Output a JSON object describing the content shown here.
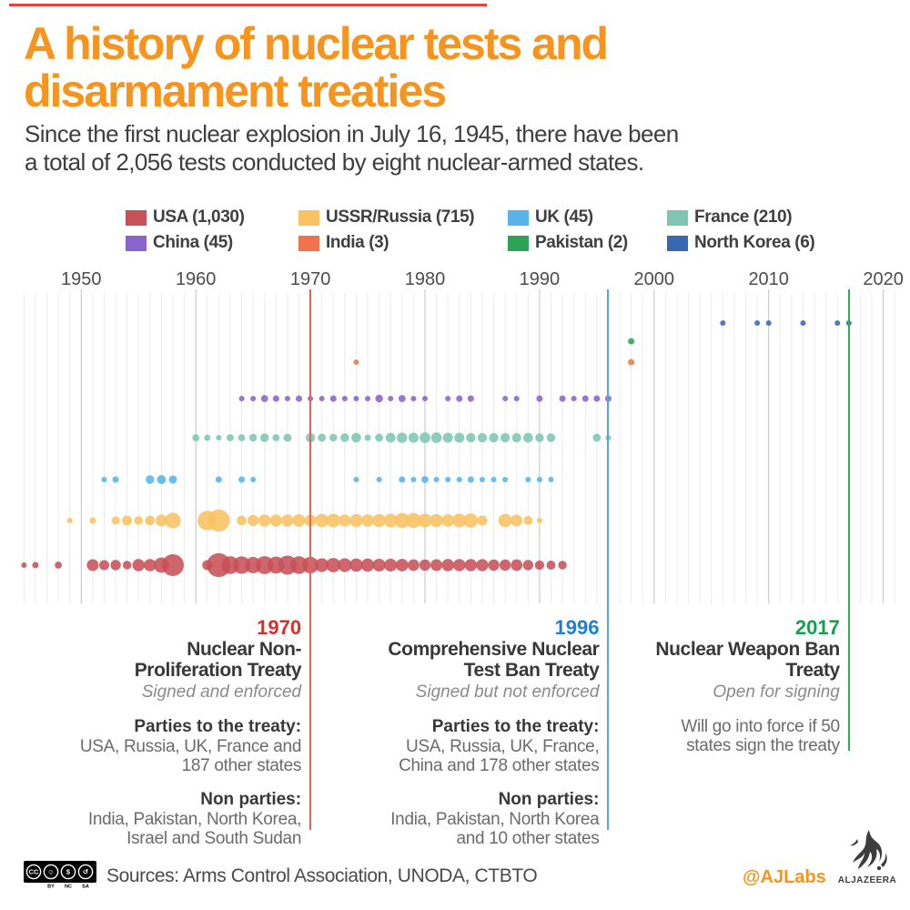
{
  "header": {
    "title_line1": "A history of nuclear tests and",
    "title_line2": "disarmament treaties",
    "subtitle_line1": "Since the first nuclear explosion in July 16, 1945, there have been",
    "subtitle_line2": "a total of 2,056 tests conducted by eight nuclear-armed states."
  },
  "legend": {
    "rows": [
      [
        {
          "label": "USA (1,030)",
          "color": "#c7515a"
        },
        {
          "label": "USSR/Russia (715)",
          "color": "#f9c262"
        },
        {
          "label": "UK (45)",
          "color": "#57b4e8"
        },
        {
          "label": "France (210)",
          "color": "#7cc6b3"
        }
      ],
      [
        {
          "label": "China (45)",
          "color": "#8a63cd"
        },
        {
          "label": "India (3)",
          "color": "#ef744e"
        },
        {
          "label": "Pakistan (2)",
          "color": "#2ea357"
        },
        {
          "label": "North Korea (6)",
          "color": "#3a68b0"
        }
      ]
    ]
  },
  "chart_data": {
    "type": "bubble-timeline",
    "title": "Nuclear tests per year by country, bubble size = number of tests",
    "x_axis": {
      "min": 1945,
      "max": 2021,
      "ticks": [
        1950,
        1960,
        1970,
        1980,
        1990,
        2000,
        2010,
        2020
      ]
    },
    "grid": true,
    "series": [
      {
        "name": "USA",
        "total": 1030,
        "color": "#c7515a",
        "tests": {
          "1945": 1,
          "1946": 2,
          "1948": 3,
          "1951": 16,
          "1952": 10,
          "1953": 11,
          "1954": 6,
          "1955": 18,
          "1956": 18,
          "1957": 32,
          "1958": 77,
          "1961": 10,
          "1962": 96,
          "1963": 47,
          "1964": 45,
          "1965": 38,
          "1966": 48,
          "1967": 42,
          "1968": 56,
          "1969": 46,
          "1970": 39,
          "1971": 24,
          "1972": 27,
          "1973": 24,
          "1974": 22,
          "1975": 22,
          "1976": 20,
          "1977": 20,
          "1978": 19,
          "1979": 15,
          "1980": 14,
          "1981": 16,
          "1982": 18,
          "1983": 18,
          "1984": 18,
          "1985": 17,
          "1986": 14,
          "1987": 14,
          "1988": 15,
          "1989": 11,
          "1990": 8,
          "1991": 7,
          "1992": 6
        }
      },
      {
        "name": "USSR/Russia",
        "total": 715,
        "color": "#f9c262",
        "tests": {
          "1949": 1,
          "1951": 2,
          "1953": 5,
          "1954": 10,
          "1955": 6,
          "1956": 9,
          "1957": 16,
          "1958": 34,
          "1961": 59,
          "1962": 79,
          "1964": 9,
          "1965": 14,
          "1966": 18,
          "1967": 17,
          "1968": 17,
          "1969": 19,
          "1970": 16,
          "1971": 23,
          "1972": 24,
          "1973": 17,
          "1974": 21,
          "1975": 19,
          "1976": 21,
          "1977": 24,
          "1978": 31,
          "1979": 31,
          "1980": 24,
          "1981": 21,
          "1982": 19,
          "1983": 25,
          "1984": 27,
          "1985": 10,
          "1987": 23,
          "1988": 16,
          "1989": 7,
          "1990": 1
        }
      },
      {
        "name": "UK",
        "total": 45,
        "color": "#57b4e8",
        "tests": {
          "1952": 1,
          "1953": 2,
          "1956": 6,
          "1957": 7,
          "1958": 5,
          "1962": 2,
          "1964": 2,
          "1965": 1,
          "1974": 1,
          "1976": 1,
          "1978": 2,
          "1979": 1,
          "1980": 3,
          "1981": 1,
          "1982": 1,
          "1983": 1,
          "1984": 2,
          "1985": 1,
          "1986": 1,
          "1987": 1,
          "1989": 1,
          "1990": 1,
          "1991": 1
        }
      },
      {
        "name": "France",
        "total": 210,
        "color": "#7cc6b3",
        "tests": {
          "1960": 3,
          "1961": 2,
          "1962": 1,
          "1963": 3,
          "1964": 3,
          "1965": 4,
          "1966": 6,
          "1967": 3,
          "1968": 5,
          "1970": 8,
          "1971": 5,
          "1972": 4,
          "1973": 6,
          "1974": 9,
          "1975": 2,
          "1976": 5,
          "1977": 9,
          "1978": 11,
          "1979": 10,
          "1980": 12,
          "1981": 12,
          "1982": 10,
          "1983": 10,
          "1984": 8,
          "1985": 8,
          "1986": 8,
          "1987": 8,
          "1988": 8,
          "1989": 9,
          "1990": 6,
          "1991": 6,
          "1995": 5,
          "1996": 1
        }
      },
      {
        "name": "China",
        "total": 45,
        "color": "#8a63cd",
        "tests": {
          "1964": 1,
          "1965": 1,
          "1966": 3,
          "1967": 2,
          "1968": 1,
          "1969": 2,
          "1970": 1,
          "1971": 1,
          "1972": 2,
          "1973": 1,
          "1974": 1,
          "1975": 1,
          "1976": 4,
          "1977": 1,
          "1978": 3,
          "1979": 1,
          "1980": 1,
          "1982": 1,
          "1983": 2,
          "1984": 2,
          "1987": 1,
          "1988": 1,
          "1990": 2,
          "1992": 2,
          "1993": 1,
          "1994": 2,
          "1995": 2,
          "1996": 2
        }
      },
      {
        "name": "India",
        "total": 3,
        "color": "#ef744e",
        "tests": {
          "1974": 1,
          "1998": 2
        }
      },
      {
        "name": "Pakistan",
        "total": 2,
        "color": "#2ea357",
        "tests": {
          "1998": 2
        }
      },
      {
        "name": "North Korea",
        "total": 6,
        "color": "#3a68b0",
        "tests": {
          "2006": 1,
          "2009": 1,
          "2010": 1,
          "2013": 1,
          "2016": 1,
          "2017": 1
        }
      }
    ]
  },
  "treaties": [
    {
      "year": "1970",
      "year_value": 1970,
      "year_color": "#d92f27",
      "line_color": "#e2625e",
      "line_bottom": 912,
      "title_lines": [
        "Nuclear Non-",
        "Proliferation Treaty"
      ],
      "status": "Signed and enforced",
      "sections": [
        {
          "label": "Parties to the treaty:",
          "lines": [
            "USA, Russia, UK, France and",
            "187 other states"
          ]
        },
        {
          "label": "Non parties:",
          "lines": [
            "India, Pakistan, North Korea,",
            "Israel and South Sudan"
          ]
        }
      ]
    },
    {
      "year": "1996",
      "year_value": 1996,
      "year_color": "#1f7fd4",
      "line_color": "#58a7db",
      "line_bottom": 912,
      "title_lines": [
        "Comprehensive Nuclear",
        "Test Ban Treaty"
      ],
      "status": "Signed but not enforced",
      "sections": [
        {
          "label": "Parties to the treaty:",
          "lines": [
            "USA, Russia, UK, France,",
            "China and 178 other states"
          ]
        },
        {
          "label": "Non parties:",
          "lines": [
            "India, Pakistan, North Korea",
            "and 10 other states"
          ]
        }
      ]
    },
    {
      "year": "2017",
      "year_value": 2017,
      "year_color": "#12a24c",
      "line_color": "#2fae54",
      "line_bottom": 825,
      "title_lines": [
        "Nuclear Weapon Ban",
        "Treaty"
      ],
      "status": "Open for signing",
      "sections": [
        {
          "label": "",
          "lines": [
            "Will go into force if 50",
            "states sign the treaty"
          ]
        }
      ]
    }
  ],
  "footer": {
    "sources": "Sources: Arms Control Association, UNODA, CTBTO",
    "handle": "@AJLabs",
    "brand": "ALJAZEERA",
    "cc_badges": [
      "CC",
      "BY",
      "NC",
      "SA"
    ]
  }
}
